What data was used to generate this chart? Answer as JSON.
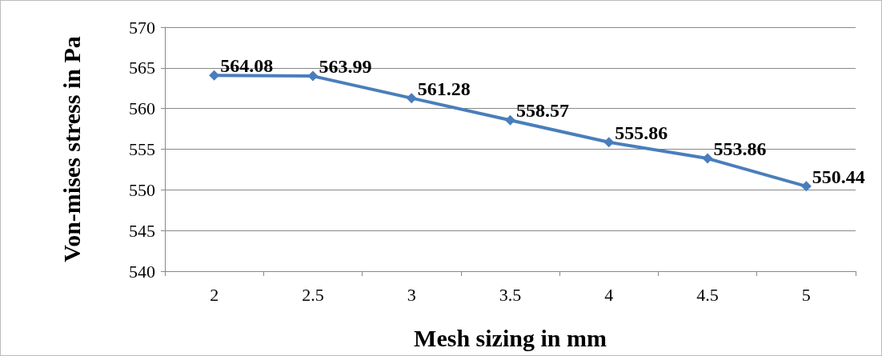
{
  "chart_data": {
    "type": "line",
    "xlabel": "Mesh sizing in mm",
    "ylabel": "Von-mises stress in Pa",
    "categories": [
      "2",
      "2.5",
      "3",
      "3.5",
      "4",
      "4.5",
      "5"
    ],
    "series": [
      {
        "color": "#4a7ebb",
        "values": [
          564.08,
          563.99,
          561.28,
          558.57,
          555.86,
          553.86,
          550.44
        ]
      }
    ],
    "ylim": [
      540,
      570
    ],
    "yticks": [
      540,
      545,
      550,
      555,
      560,
      565,
      570
    ],
    "grid": "y",
    "marker": "diamond",
    "line_style": "solid",
    "data_labels": true
  }
}
